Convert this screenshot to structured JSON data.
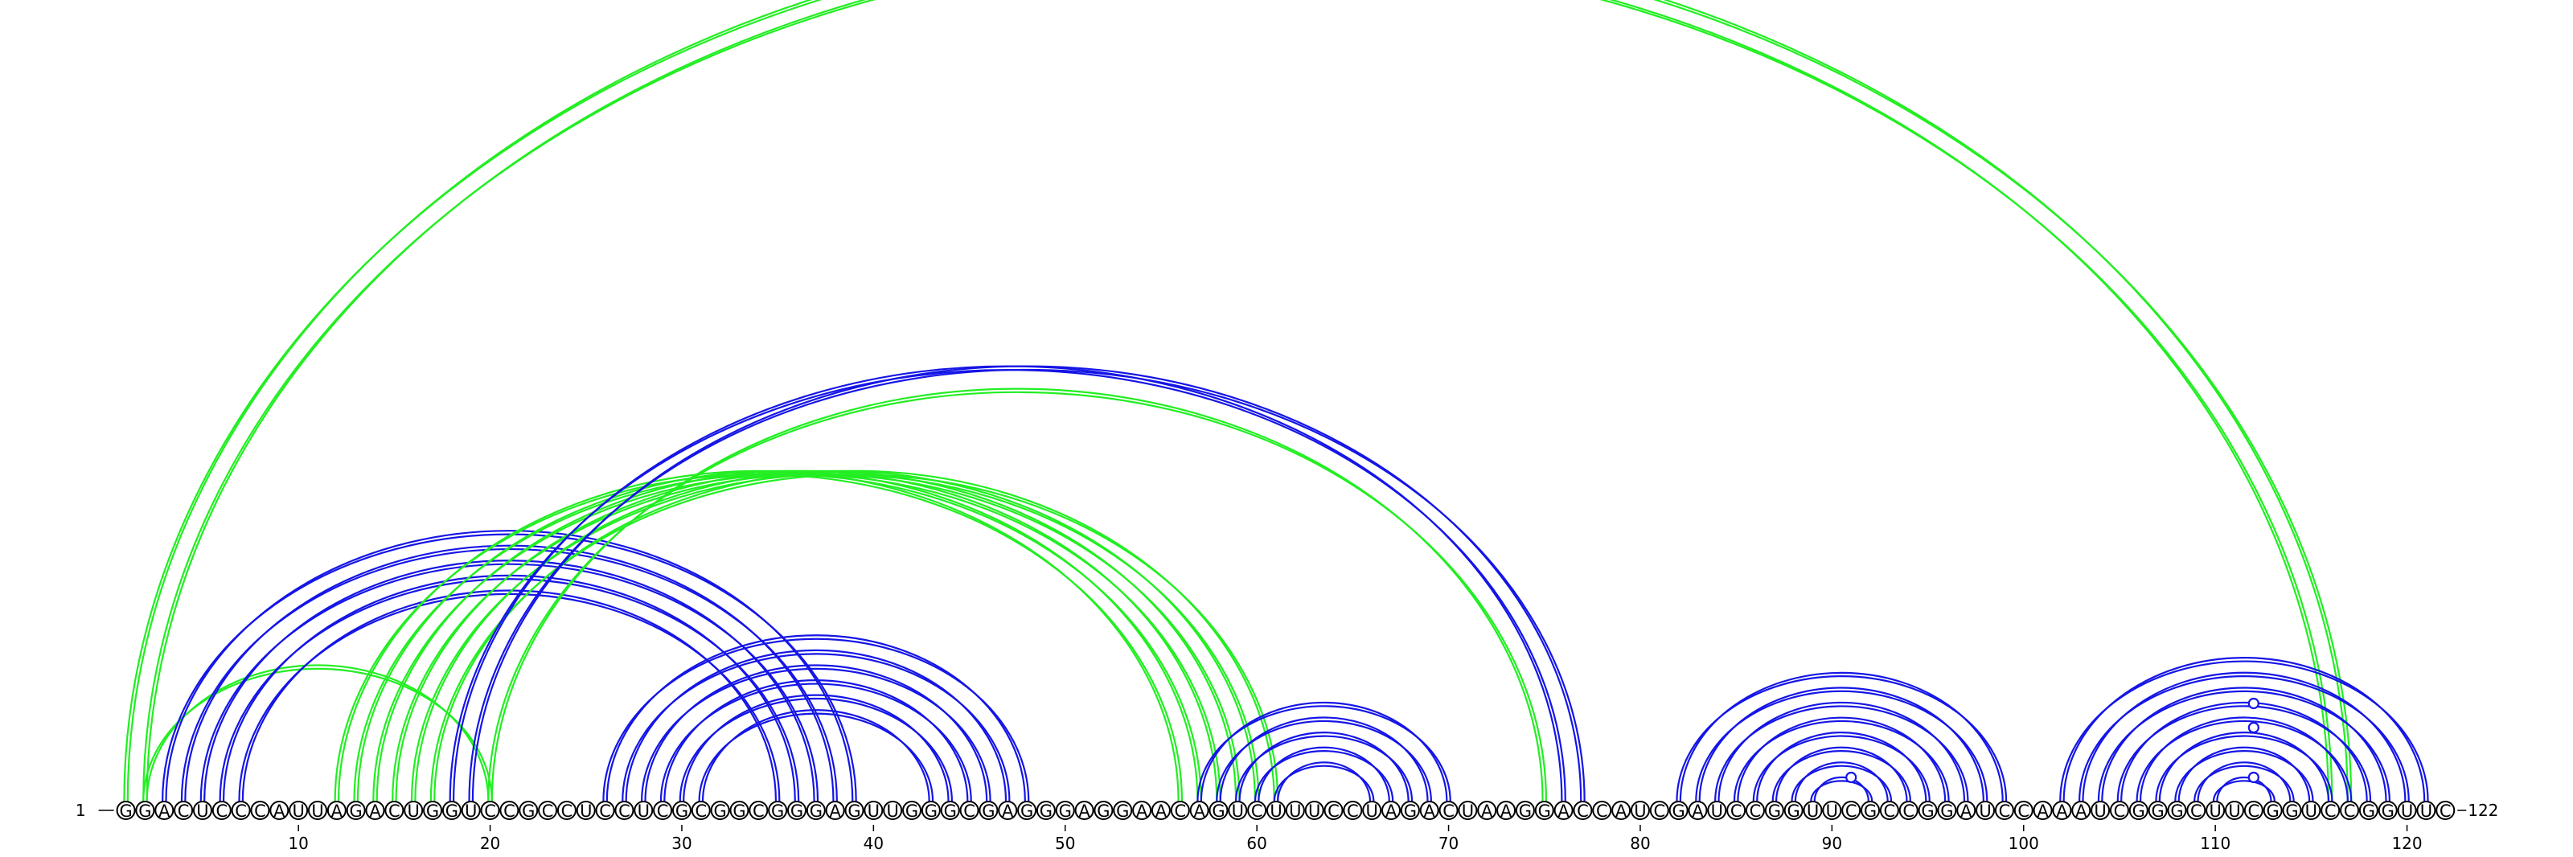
{
  "sequence": "GGACUCCCAUUAGACUGGUCCGCCUCCUCGCGGCGGGAGUUGGGCGAGGGAGGAACAGUCUUUCCUAGACUAAGGACCAUCGAUCCGGUUCGCCGGAUCCAAAUCGGGCUUCGGUCCGGUUC",
  "start_label": "1",
  "end_label": "122",
  "tick_labels": [
    "10",
    "20",
    "30",
    "40",
    "50",
    "60",
    "70",
    "80",
    "90",
    "100",
    "110",
    "120"
  ],
  "colors": {
    "blue": "#1515e6",
    "green": "#22ee22",
    "circle_stroke": "#000000",
    "text": "#000000"
  },
  "chart_data": {
    "type": "arc-diagram",
    "length": 122,
    "ticks": [
      10,
      20,
      30,
      40,
      50,
      60,
      70,
      80,
      90,
      100,
      110,
      120
    ],
    "pairs": [
      {
        "i": 1,
        "j": 117,
        "color": "green"
      },
      {
        "i": 2,
        "j": 116,
        "color": "green"
      },
      {
        "i": 2,
        "j": 20,
        "color": "green"
      },
      {
        "i": 3,
        "j": 39,
        "color": "blue"
      },
      {
        "i": 4,
        "j": 38,
        "color": "blue"
      },
      {
        "i": 5,
        "j": 37,
        "color": "blue"
      },
      {
        "i": 6,
        "j": 36,
        "color": "blue"
      },
      {
        "i": 7,
        "j": 35,
        "color": "blue"
      },
      {
        "i": 12,
        "j": 56,
        "color": "green"
      },
      {
        "i": 13,
        "j": 57,
        "color": "green"
      },
      {
        "i": 14,
        "j": 58,
        "color": "green"
      },
      {
        "i": 15,
        "j": 59,
        "color": "green"
      },
      {
        "i": 16,
        "j": 60,
        "color": "green"
      },
      {
        "i": 17,
        "j": 61,
        "color": "green"
      },
      {
        "i": 18,
        "j": 76,
        "color": "blue"
      },
      {
        "i": 19,
        "j": 77,
        "color": "blue"
      },
      {
        "i": 20,
        "j": 75,
        "color": "green"
      },
      {
        "i": 26,
        "j": 48,
        "color": "blue"
      },
      {
        "i": 27,
        "j": 47,
        "color": "blue"
      },
      {
        "i": 28,
        "j": 46,
        "color": "blue"
      },
      {
        "i": 29,
        "j": 45,
        "color": "blue"
      },
      {
        "i": 30,
        "j": 44,
        "color": "blue"
      },
      {
        "i": 31,
        "j": 43,
        "color": "blue"
      },
      {
        "i": 57,
        "j": 70,
        "color": "blue"
      },
      {
        "i": 58,
        "j": 69,
        "color": "blue"
      },
      {
        "i": 59,
        "j": 68,
        "color": "blue"
      },
      {
        "i": 60,
        "j": 67,
        "color": "blue"
      },
      {
        "i": 61,
        "j": 66,
        "color": "blue"
      },
      {
        "i": 82,
        "j": 99,
        "color": "blue"
      },
      {
        "i": 83,
        "j": 98,
        "color": "blue"
      },
      {
        "i": 84,
        "j": 97,
        "color": "blue"
      },
      {
        "i": 85,
        "j": 96,
        "color": "blue"
      },
      {
        "i": 86,
        "j": 95,
        "color": "blue"
      },
      {
        "i": 87,
        "j": 94,
        "color": "blue"
      },
      {
        "i": 88,
        "j": 93,
        "color": "blue"
      },
      {
        "i": 89,
        "j": 92,
        "color": "blue"
      },
      {
        "i": 102,
        "j": 121,
        "color": "blue"
      },
      {
        "i": 103,
        "j": 120,
        "color": "blue"
      },
      {
        "i": 104,
        "j": 119,
        "color": "blue"
      },
      {
        "i": 105,
        "j": 118,
        "color": "blue"
      },
      {
        "i": 106,
        "j": 117,
        "color": "blue"
      },
      {
        "i": 107,
        "j": 116,
        "color": "blue"
      },
      {
        "i": 108,
        "j": 115,
        "color": "blue"
      },
      {
        "i": 109,
        "j": 114,
        "color": "blue"
      },
      {
        "i": 110,
        "j": 113,
        "color": "blue"
      }
    ],
    "markers": [
      {
        "position": 91,
        "color": "blue"
      },
      {
        "position": 112,
        "color": "blue"
      },
      {
        "position": 112,
        "color": "blue"
      },
      {
        "position": 112,
        "color": "blue"
      }
    ]
  }
}
